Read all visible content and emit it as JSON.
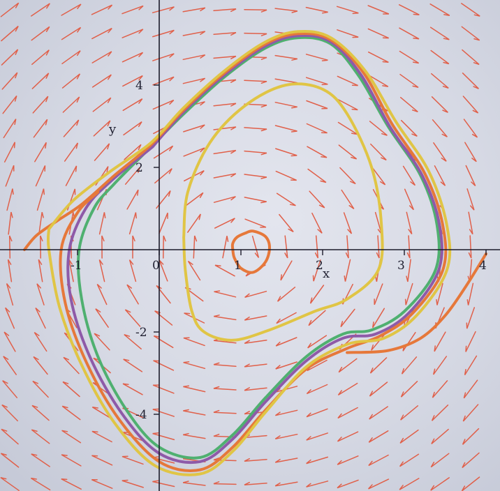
{
  "chart_data": {
    "type": "direction-field",
    "xlabel": "x",
    "ylabel": "y",
    "xlim": [
      -1.75,
      4.1
    ],
    "ylim": [
      -5.7,
      5.7
    ],
    "x_ticks": [
      "-1",
      "0",
      "1",
      "2",
      "3",
      "4"
    ],
    "y_ticks": [
      "4",
      "2",
      "-2",
      "-4"
    ],
    "equilibrium": [
      1,
      0
    ],
    "grid": false,
    "field_color": "#e0604a",
    "trajectories": [
      {
        "color": "#e6783a",
        "kind": "inner-spiral",
        "points": [
          [
            0.9,
            0.0
          ],
          [
            0.9,
            0.15
          ],
          [
            0.95,
            0.3
          ],
          [
            1.05,
            0.4
          ],
          [
            1.15,
            0.45
          ],
          [
            1.3,
            0.32
          ],
          [
            1.35,
            0.05
          ],
          [
            1.3,
            -0.3
          ],
          [
            1.15,
            -0.55
          ],
          [
            1.0,
            -0.45
          ],
          [
            0.92,
            -0.2
          ],
          [
            0.9,
            0.0
          ]
        ]
      },
      {
        "color": "#e0c545",
        "kind": "middle-orbit",
        "points": [
          [
            0.3,
            0.3
          ],
          [
            0.35,
            1.4
          ],
          [
            0.62,
            2.6
          ],
          [
            1.05,
            3.5
          ],
          [
            1.55,
            4.0
          ],
          [
            2.0,
            3.9
          ],
          [
            2.3,
            3.3
          ],
          [
            2.6,
            2.0
          ],
          [
            2.72,
            0.6
          ],
          [
            2.68,
            -0.5
          ],
          [
            2.3,
            -1.2
          ],
          [
            1.9,
            -1.5
          ],
          [
            1.35,
            -1.95
          ],
          [
            0.9,
            -2.2
          ],
          [
            0.55,
            -2.0
          ],
          [
            0.4,
            -1.5
          ],
          [
            0.32,
            -0.5
          ],
          [
            0.3,
            0.3
          ]
        ]
      },
      {
        "color": "#4fb070",
        "kind": "limit-cycle",
        "points": [
          [
            -0.1,
            2.5
          ],
          [
            0.3,
            3.3
          ],
          [
            0.8,
            4.2
          ],
          [
            1.3,
            4.9
          ],
          [
            1.7,
            5.15
          ],
          [
            2.1,
            5.0
          ],
          [
            2.45,
            4.2
          ],
          [
            2.8,
            3.0
          ],
          [
            3.2,
            1.8
          ],
          [
            3.4,
            0.6
          ],
          [
            3.38,
            -0.5
          ],
          [
            3.0,
            -1.5
          ],
          [
            2.6,
            -1.95
          ],
          [
            2.25,
            -2.05
          ],
          [
            1.8,
            -2.6
          ],
          [
            1.3,
            -3.6
          ],
          [
            0.9,
            -4.5
          ],
          [
            0.5,
            -5.05
          ],
          [
            0.0,
            -4.8
          ],
          [
            -0.4,
            -3.9
          ],
          [
            -0.75,
            -2.6
          ],
          [
            -0.95,
            -1.2
          ],
          [
            -0.98,
            0.0
          ],
          [
            -0.8,
            1.0
          ],
          [
            -0.55,
            1.6
          ],
          [
            -0.1,
            2.5
          ]
        ]
      },
      {
        "color": "#8e5aa8",
        "kind": "outer-orbit",
        "points": [
          [
            -0.08,
            2.5
          ],
          [
            0.3,
            3.35
          ],
          [
            0.8,
            4.25
          ],
          [
            1.3,
            4.95
          ],
          [
            1.7,
            5.2
          ],
          [
            2.1,
            5.05
          ],
          [
            2.47,
            4.25
          ],
          [
            2.82,
            3.0
          ],
          [
            3.22,
            1.8
          ],
          [
            3.43,
            0.6
          ],
          [
            3.42,
            -0.5
          ],
          [
            3.05,
            -1.55
          ],
          [
            2.65,
            -2.05
          ],
          [
            2.25,
            -2.15
          ],
          [
            1.8,
            -2.7
          ],
          [
            1.3,
            -3.7
          ],
          [
            0.9,
            -4.6
          ],
          [
            0.5,
            -5.15
          ],
          [
            0.0,
            -4.95
          ],
          [
            -0.45,
            -4.0
          ],
          [
            -0.85,
            -2.6
          ],
          [
            -1.08,
            -1.2
          ],
          [
            -1.1,
            0.0
          ],
          [
            -0.9,
            1.0
          ],
          [
            -0.6,
            1.65
          ],
          [
            -0.08,
            2.5
          ]
        ]
      },
      {
        "color": "#e6783a",
        "kind": "incoming-left-outgoing-right",
        "points": [
          [
            -1.65,
            0.0
          ],
          [
            -1.5,
            0.35
          ],
          [
            -1.25,
            0.7
          ],
          [
            -0.95,
            1.1
          ],
          [
            -0.55,
            1.8
          ],
          [
            -0.1,
            2.55
          ],
          [
            0.3,
            3.4
          ],
          [
            0.8,
            4.3
          ],
          [
            1.3,
            5.0
          ],
          [
            1.7,
            5.25
          ],
          [
            2.1,
            5.1
          ],
          [
            2.5,
            4.3
          ],
          [
            2.85,
            3.05
          ],
          [
            3.25,
            1.85
          ],
          [
            3.47,
            0.6
          ],
          [
            3.47,
            -0.5
          ],
          [
            3.1,
            -1.55
          ],
          [
            2.7,
            -2.1
          ],
          [
            2.3,
            -2.4
          ],
          [
            1.8,
            -2.9
          ],
          [
            1.3,
            -3.9
          ],
          [
            0.9,
            -4.8
          ],
          [
            0.5,
            -5.35
          ],
          [
            0.0,
            -5.15
          ],
          [
            -0.5,
            -4.1
          ],
          [
            -0.9,
            -2.7
          ],
          [
            -1.15,
            -1.3
          ],
          [
            -1.2,
            0.0
          ],
          [
            -1.0,
            0.9
          ],
          [
            -0.75,
            1.4
          ]
        ]
      },
      {
        "color": "#e6783a",
        "kind": "right-branch",
        "points": [
          [
            2.3,
            -2.5
          ],
          [
            2.8,
            -2.45
          ],
          [
            3.2,
            -2.15
          ],
          [
            3.5,
            -1.6
          ],
          [
            3.75,
            -0.9
          ],
          [
            4.0,
            -0.1
          ]
        ]
      },
      {
        "color": "#e0c545",
        "kind": "outer-envelope",
        "points": [
          [
            -1.35,
            0.5
          ],
          [
            -1.05,
            1.2
          ],
          [
            -0.6,
            1.9
          ],
          [
            -0.1,
            2.6
          ],
          [
            0.3,
            3.45
          ],
          [
            0.8,
            4.35
          ],
          [
            1.3,
            5.05
          ],
          [
            1.7,
            5.3
          ],
          [
            2.1,
            5.15
          ],
          [
            2.52,
            4.35
          ],
          [
            2.9,
            3.1
          ],
          [
            3.3,
            1.9
          ],
          [
            3.52,
            0.6
          ],
          [
            3.52,
            -0.5
          ],
          [
            3.15,
            -1.6
          ],
          [
            2.75,
            -2.15
          ],
          [
            2.3,
            -2.3
          ],
          [
            1.8,
            -2.85
          ],
          [
            1.3,
            -3.95
          ],
          [
            0.9,
            -4.9
          ],
          [
            0.5,
            -5.45
          ],
          [
            -0.05,
            -5.25
          ],
          [
            -0.55,
            -4.2
          ],
          [
            -0.95,
            -2.8
          ],
          [
            -1.22,
            -1.4
          ],
          [
            -1.35,
            0.0
          ],
          [
            -1.35,
            0.5
          ]
        ]
      }
    ]
  }
}
